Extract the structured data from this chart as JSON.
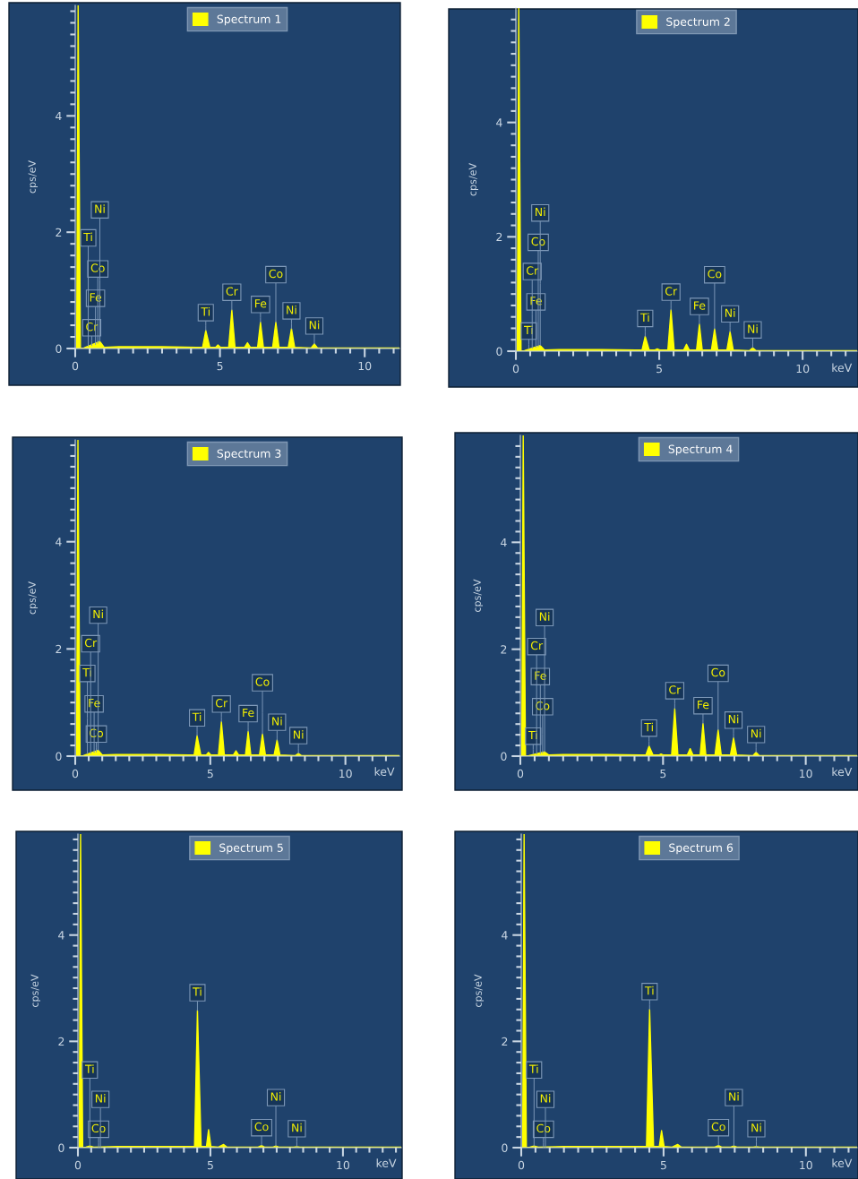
{
  "chart_data": [
    {
      "type": "area",
      "ylabel": "cps/eV",
      "legend": "top",
      "xlim": [
        0,
        11.2
      ],
      "ylim": [
        0,
        5.9
      ],
      "xticks": [
        0,
        {
          "value": 0.5,
          "label": null
        },
        {
          "value": 1,
          "label": null
        },
        {
          "value": 1.5,
          "label": null
        },
        {
          "value": 2,
          "label": null
        },
        {
          "value": 2.5,
          "label": null
        },
        {
          "value": 3,
          "label": null
        },
        {
          "value": 3.5,
          "label": null
        },
        {
          "value": 4,
          "label": null
        },
        {
          "value": 4.5,
          "label": null
        },
        5,
        {
          "value": 5.5,
          "label": null
        },
        {
          "value": 6,
          "label": null
        },
        {
          "value": 6.5,
          "label": null
        },
        {
          "value": 7,
          "label": null
        },
        {
          "value": 7.5,
          "label": null
        },
        {
          "value": 8,
          "label": null
        },
        {
          "value": 8.5,
          "label": null
        },
        {
          "value": 9,
          "label": null
        },
        {
          "value": 9.5,
          "label": null
        },
        10,
        {
          "value": 10.5,
          "label": null
        },
        {
          "value": 11,
          "label": null
        }
      ],
      "yticks": [
        0,
        {
          "value": 0.2,
          "label": null
        },
        {
          "value": 0.4,
          "label": null
        },
        {
          "value": 0.6,
          "label": null
        },
        {
          "value": 0.8,
          "label": null
        },
        {
          "value": 1,
          "label": null
        },
        {
          "value": 1.2,
          "label": null
        },
        {
          "value": 1.4,
          "label": null
        },
        {
          "value": 1.6,
          "label": null
        },
        {
          "value": 1.8,
          "label": null
        },
        2,
        {
          "value": 2.2,
          "label": null
        },
        {
          "value": 2.4,
          "label": null
        },
        {
          "value": 2.6,
          "label": null
        },
        {
          "value": 2.8,
          "label": null
        },
        {
          "value": 3,
          "label": null
        },
        {
          "value": 3.2,
          "label": null
        },
        {
          "value": 3.4,
          "label": null
        },
        {
          "value": 3.6,
          "label": null
        },
        {
          "value": 3.8,
          "label": null
        },
        4,
        {
          "value": 4.2,
          "label": null
        },
        {
          "value": 4.4,
          "label": null
        },
        {
          "value": 4.6,
          "label": null
        },
        {
          "value": 4.8,
          "label": null
        },
        {
          "value": 5,
          "label": null
        },
        {
          "value": 5.2,
          "label": null
        },
        {
          "value": 5.4,
          "label": null
        },
        {
          "value": 5.6,
          "label": null
        },
        {
          "value": 5.8,
          "label": null
        }
      ],
      "series": [
        {
          "name": "Spectrum 1",
          "color": "#ffff00",
          "x": [
            0,
            0.05,
            0.1,
            0.18,
            0.3,
            0.85,
            1.0,
            1.5,
            3.0,
            4.2,
            4.4,
            4.51,
            4.65,
            4.85,
            4.93,
            5.02,
            5.3,
            5.41,
            5.52,
            5.85,
            5.95,
            6.05,
            6.3,
            6.4,
            6.5,
            6.82,
            6.93,
            7.04,
            7.36,
            7.47,
            7.58,
            8.15,
            8.26,
            8.37,
            9,
            11.2
          ],
          "values": [
            0,
            0,
            5.9,
            0,
            0.01,
            0.12,
            0.02,
            0.03,
            0.03,
            0.02,
            0.02,
            0.31,
            0.02,
            0.02,
            0.06,
            0.02,
            0.02,
            0.66,
            0.02,
            0.02,
            0.1,
            0.02,
            0.02,
            0.45,
            0.02,
            0.02,
            0.45,
            0.02,
            0.02,
            0.34,
            0.02,
            0.01,
            0.08,
            0.01,
            0.01,
            0.01
          ]
        }
      ],
      "annotations": [
        {
          "text": "Cr",
          "x": 0.57,
          "y": 0.05
        },
        {
          "text": "Fe",
          "x": 0.7,
          "y": 0.07
        },
        {
          "text": "Co",
          "x": 0.78,
          "y": 0.09
        },
        {
          "text": "Ti",
          "x": 0.45,
          "y": 0.04
        },
        {
          "text": "Ni",
          "x": 0.85,
          "y": 0.12
        },
        {
          "text": "Ti",
          "x": 4.51,
          "y": 0.31
        },
        {
          "text": "Cr",
          "x": 5.41,
          "y": 0.66
        },
        {
          "text": "Fe",
          "x": 6.4,
          "y": 0.45
        },
        {
          "text": "Co",
          "x": 6.93,
          "y": 0.45
        },
        {
          "text": "Ni",
          "x": 7.47,
          "y": 0.34
        },
        {
          "text": "Ni",
          "x": 8.26,
          "y": 0.08
        }
      ]
    },
    {
      "type": "area",
      "ylabel": "cps/eV",
      "xlabel": "keV",
      "legend": "top",
      "xlim": [
        0,
        11.9
      ],
      "ylim": [
        0,
        6.0
      ],
      "xticks": [
        0,
        {
          "value": 0.5,
          "label": null
        },
        {
          "value": 1,
          "label": null
        },
        {
          "value": 1.5,
          "label": null
        },
        {
          "value": 2,
          "label": null
        },
        {
          "value": 2.5,
          "label": null
        },
        {
          "value": 3,
          "label": null
        },
        {
          "value": 3.5,
          "label": null
        },
        {
          "value": 4,
          "label": null
        },
        {
          "value": 4.5,
          "label": null
        },
        5,
        {
          "value": 5.5,
          "label": null
        },
        {
          "value": 6,
          "label": null
        },
        {
          "value": 6.5,
          "label": null
        },
        {
          "value": 7,
          "label": null
        },
        {
          "value": 7.5,
          "label": null
        },
        {
          "value": 8,
          "label": null
        },
        {
          "value": 8.5,
          "label": null
        },
        {
          "value": 9,
          "label": null
        },
        {
          "value": 9.5,
          "label": null
        },
        10,
        {
          "value": 10.5,
          "label": null
        },
        {
          "value": 11,
          "label": null
        },
        {
          "value": 11.5,
          "label": null
        }
      ],
      "yticks": [
        0,
        {
          "value": 0.2,
          "label": null
        },
        {
          "value": 0.4,
          "label": null
        },
        {
          "value": 0.6,
          "label": null
        },
        {
          "value": 0.8,
          "label": null
        },
        {
          "value": 1,
          "label": null
        },
        {
          "value": 1.2,
          "label": null
        },
        {
          "value": 1.4,
          "label": null
        },
        {
          "value": 1.6,
          "label": null
        },
        {
          "value": 1.8,
          "label": null
        },
        2,
        {
          "value": 2.2,
          "label": null
        },
        {
          "value": 2.4,
          "label": null
        },
        {
          "value": 2.6,
          "label": null
        },
        {
          "value": 2.8,
          "label": null
        },
        {
          "value": 3,
          "label": null
        },
        {
          "value": 3.2,
          "label": null
        },
        {
          "value": 3.4,
          "label": null
        },
        {
          "value": 3.6,
          "label": null
        },
        {
          "value": 3.8,
          "label": null
        },
        4,
        {
          "value": 4.2,
          "label": null
        },
        {
          "value": 4.4,
          "label": null
        },
        {
          "value": 4.6,
          "label": null
        },
        {
          "value": 4.8,
          "label": null
        },
        {
          "value": 5,
          "label": null
        },
        {
          "value": 5.2,
          "label": null
        },
        {
          "value": 5.4,
          "label": null
        },
        {
          "value": 5.6,
          "label": null
        },
        {
          "value": 5.8,
          "label": null
        }
      ],
      "series": [
        {
          "name": "Spectrum 2",
          "color": "#ffff00",
          "x": [
            0,
            0.05,
            0.1,
            0.18,
            0.3,
            0.85,
            1.0,
            1.5,
            3.0,
            4.2,
            4.4,
            4.51,
            4.65,
            4.85,
            4.93,
            5.02,
            5.3,
            5.41,
            5.52,
            5.85,
            5.95,
            6.05,
            6.3,
            6.4,
            6.5,
            6.82,
            6.93,
            7.04,
            7.36,
            7.47,
            7.58,
            8.15,
            8.26,
            8.37,
            9,
            11.9
          ],
          "values": [
            0,
            0,
            6.0,
            0,
            0.01,
            0.1,
            0.02,
            0.03,
            0.03,
            0.02,
            0.02,
            0.26,
            0.02,
            0.02,
            0.04,
            0.02,
            0.02,
            0.72,
            0.02,
            0.02,
            0.12,
            0.02,
            0.02,
            0.47,
            0.02,
            0.02,
            0.39,
            0.02,
            0.02,
            0.34,
            0.02,
            0.01,
            0.06,
            0.01,
            0.01,
            0.01
          ]
        }
      ],
      "annotations": [
        {
          "text": "Ti",
          "x": 0.45,
          "y": 0.04
        },
        {
          "text": "Fe",
          "x": 0.7,
          "y": 0.07
        },
        {
          "text": "Cr",
          "x": 0.57,
          "y": 0.05
        },
        {
          "text": "Co",
          "x": 0.78,
          "y": 0.08
        },
        {
          "text": "Ni",
          "x": 0.85,
          "y": 0.1
        },
        {
          "text": "Ti",
          "x": 4.51,
          "y": 0.26
        },
        {
          "text": "Cr",
          "x": 5.41,
          "y": 0.72
        },
        {
          "text": "Fe",
          "x": 6.4,
          "y": 0.47
        },
        {
          "text": "Co",
          "x": 6.93,
          "y": 0.39
        },
        {
          "text": "Ni",
          "x": 7.47,
          "y": 0.34
        },
        {
          "text": "Ni",
          "x": 8.26,
          "y": 0.06
        }
      ]
    },
    {
      "type": "area",
      "ylabel": "cps/eV",
      "xlabel": "keV",
      "legend": "top",
      "xlim": [
        0,
        12
      ],
      "ylim": [
        0,
        5.9
      ],
      "xticks": [
        0,
        {
          "value": 0.5,
          "label": null
        },
        {
          "value": 1,
          "label": null
        },
        {
          "value": 1.5,
          "label": null
        },
        {
          "value": 2,
          "label": null
        },
        {
          "value": 2.5,
          "label": null
        },
        {
          "value": 3,
          "label": null
        },
        {
          "value": 3.5,
          "label": null
        },
        {
          "value": 4,
          "label": null
        },
        {
          "value": 4.5,
          "label": null
        },
        5,
        {
          "value": 5.5,
          "label": null
        },
        {
          "value": 6,
          "label": null
        },
        {
          "value": 6.5,
          "label": null
        },
        {
          "value": 7,
          "label": null
        },
        {
          "value": 7.5,
          "label": null
        },
        {
          "value": 8,
          "label": null
        },
        {
          "value": 8.5,
          "label": null
        },
        {
          "value": 9,
          "label": null
        },
        {
          "value": 9.5,
          "label": null
        },
        10,
        {
          "value": 10.5,
          "label": null
        },
        {
          "value": 11,
          "label": null
        },
        {
          "value": 11.5,
          "label": null
        }
      ],
      "yticks": [
        0,
        {
          "value": 0.2,
          "label": null
        },
        {
          "value": 0.4,
          "label": null
        },
        {
          "value": 0.6,
          "label": null
        },
        {
          "value": 0.8,
          "label": null
        },
        {
          "value": 1,
          "label": null
        },
        {
          "value": 1.2,
          "label": null
        },
        {
          "value": 1.4,
          "label": null
        },
        {
          "value": 1.6,
          "label": null
        },
        {
          "value": 1.8,
          "label": null
        },
        2,
        {
          "value": 2.2,
          "label": null
        },
        {
          "value": 2.4,
          "label": null
        },
        {
          "value": 2.6,
          "label": null
        },
        {
          "value": 2.8,
          "label": null
        },
        {
          "value": 3,
          "label": null
        },
        {
          "value": 3.2,
          "label": null
        },
        {
          "value": 3.4,
          "label": null
        },
        {
          "value": 3.6,
          "label": null
        },
        {
          "value": 3.8,
          "label": null
        },
        4,
        {
          "value": 4.2,
          "label": null
        },
        {
          "value": 4.4,
          "label": null
        },
        {
          "value": 4.6,
          "label": null
        },
        {
          "value": 4.8,
          "label": null
        },
        {
          "value": 5,
          "label": null
        },
        {
          "value": 5.2,
          "label": null
        },
        {
          "value": 5.4,
          "label": null
        },
        {
          "value": 5.6,
          "label": null
        },
        {
          "value": 5.8,
          "label": null
        }
      ],
      "series": [
        {
          "name": "Spectrum 3",
          "color": "#ffff00",
          "x": [
            0,
            0.05,
            0.1,
            0.18,
            0.3,
            0.85,
            1.0,
            1.5,
            3.0,
            4.2,
            4.4,
            4.51,
            4.65,
            4.85,
            4.93,
            5.02,
            5.3,
            5.41,
            5.52,
            5.85,
            5.95,
            6.05,
            6.3,
            6.4,
            6.5,
            6.82,
            6.93,
            7.04,
            7.36,
            7.47,
            7.58,
            8.15,
            8.26,
            8.37,
            9,
            12
          ],
          "values": [
            0,
            0,
            5.9,
            0,
            0.01,
            0.11,
            0.02,
            0.03,
            0.03,
            0.02,
            0.02,
            0.38,
            0.02,
            0.02,
            0.07,
            0.02,
            0.02,
            0.64,
            0.02,
            0.02,
            0.1,
            0.02,
            0.02,
            0.46,
            0.02,
            0.02,
            0.41,
            0.02,
            0.02,
            0.3,
            0.02,
            0.01,
            0.05,
            0.01,
            0.01,
            0.01
          ]
        }
      ],
      "annotations": [
        {
          "text": "Co",
          "x": 0.78,
          "y": 0.08
        },
        {
          "text": "Fe",
          "x": 0.7,
          "y": 0.07
        },
        {
          "text": "Ti",
          "x": 0.45,
          "y": 0.04
        },
        {
          "text": "Cr",
          "x": 0.57,
          "y": 0.05
        },
        {
          "text": "Ni",
          "x": 0.85,
          "y": 0.11
        },
        {
          "text": "Ti",
          "x": 4.51,
          "y": 0.38
        },
        {
          "text": "Cr",
          "x": 5.41,
          "y": 0.64
        },
        {
          "text": "Fe",
          "x": 6.4,
          "y": 0.46
        },
        {
          "text": "Co",
          "x": 6.93,
          "y": 0.41
        },
        {
          "text": "Ni",
          "x": 7.47,
          "y": 0.3
        },
        {
          "text": "Ni",
          "x": 8.26,
          "y": 0.05
        }
      ]
    },
    {
      "type": "area",
      "ylabel": "cps/eV",
      "xlabel": "keV",
      "legend": "top",
      "xlim": [
        0,
        11.8
      ],
      "ylim": [
        0,
        6.0
      ],
      "xticks": [
        0,
        {
          "value": 0.5,
          "label": null
        },
        {
          "value": 1,
          "label": null
        },
        {
          "value": 1.5,
          "label": null
        },
        {
          "value": 2,
          "label": null
        },
        {
          "value": 2.5,
          "label": null
        },
        {
          "value": 3,
          "label": null
        },
        {
          "value": 3.5,
          "label": null
        },
        {
          "value": 4,
          "label": null
        },
        {
          "value": 4.5,
          "label": null
        },
        5,
        {
          "value": 5.5,
          "label": null
        },
        {
          "value": 6,
          "label": null
        },
        {
          "value": 6.5,
          "label": null
        },
        {
          "value": 7,
          "label": null
        },
        {
          "value": 7.5,
          "label": null
        },
        {
          "value": 8,
          "label": null
        },
        {
          "value": 8.5,
          "label": null
        },
        {
          "value": 9,
          "label": null
        },
        {
          "value": 9.5,
          "label": null
        },
        10,
        {
          "value": 10.5,
          "label": null
        },
        {
          "value": 11,
          "label": null
        },
        {
          "value": 11.5,
          "label": null
        }
      ],
      "yticks": [
        0,
        {
          "value": 0.2,
          "label": null
        },
        {
          "value": 0.4,
          "label": null
        },
        {
          "value": 0.6,
          "label": null
        },
        {
          "value": 0.8,
          "label": null
        },
        {
          "value": 1,
          "label": null
        },
        {
          "value": 1.2,
          "label": null
        },
        {
          "value": 1.4,
          "label": null
        },
        {
          "value": 1.6,
          "label": null
        },
        {
          "value": 1.8,
          "label": null
        },
        2,
        {
          "value": 2.2,
          "label": null
        },
        {
          "value": 2.4,
          "label": null
        },
        {
          "value": 2.6,
          "label": null
        },
        {
          "value": 2.8,
          "label": null
        },
        {
          "value": 3,
          "label": null
        },
        {
          "value": 3.2,
          "label": null
        },
        {
          "value": 3.4,
          "label": null
        },
        {
          "value": 3.6,
          "label": null
        },
        {
          "value": 3.8,
          "label": null
        },
        4,
        {
          "value": 4.2,
          "label": null
        },
        {
          "value": 4.4,
          "label": null
        },
        {
          "value": 4.6,
          "label": null
        },
        {
          "value": 4.8,
          "label": null
        },
        {
          "value": 5,
          "label": null
        },
        {
          "value": 5.2,
          "label": null
        },
        {
          "value": 5.4,
          "label": null
        },
        {
          "value": 5.6,
          "label": null
        },
        {
          "value": 5.8,
          "label": null
        }
      ],
      "series": [
        {
          "name": "Spectrum 4",
          "color": "#ffff00",
          "x": [
            0,
            0.05,
            0.1,
            0.18,
            0.3,
            0.85,
            1.0,
            1.5,
            3.0,
            4.2,
            4.4,
            4.51,
            4.65,
            4.85,
            4.93,
            5.02,
            5.3,
            5.41,
            5.52,
            5.85,
            5.95,
            6.05,
            6.3,
            6.4,
            6.5,
            6.82,
            6.93,
            7.04,
            7.36,
            7.47,
            7.58,
            8.15,
            8.26,
            8.37,
            9,
            11.8
          ],
          "values": [
            0,
            0,
            6.0,
            0,
            0.01,
            0.08,
            0.02,
            0.03,
            0.03,
            0.02,
            0.02,
            0.19,
            0.02,
            0.02,
            0.04,
            0.02,
            0.02,
            0.89,
            0.02,
            0.02,
            0.14,
            0.02,
            0.02,
            0.61,
            0.02,
            0.02,
            0.49,
            0.02,
            0.02,
            0.34,
            0.02,
            0.01,
            0.07,
            0.01,
            0.01,
            0.01
          ]
        }
      ],
      "annotations": [
        {
          "text": "Ti",
          "x": 0.45,
          "y": 0.04
        },
        {
          "text": "Co",
          "x": 0.78,
          "y": 0.06
        },
        {
          "text": "Fe",
          "x": 0.7,
          "y": 0.05
        },
        {
          "text": "Cr",
          "x": 0.57,
          "y": 0.04
        },
        {
          "text": "Ni",
          "x": 0.85,
          "y": 0.08
        },
        {
          "text": "Ti",
          "x": 4.51,
          "y": 0.19
        },
        {
          "text": "Cr",
          "x": 5.41,
          "y": 0.89
        },
        {
          "text": "Fe",
          "x": 6.4,
          "y": 0.61
        },
        {
          "text": "Co",
          "x": 6.93,
          "y": 0.49
        },
        {
          "text": "Ni",
          "x": 7.47,
          "y": 0.34
        },
        {
          "text": "Ni",
          "x": 8.26,
          "y": 0.07
        }
      ]
    },
    {
      "type": "area",
      "ylabel": "cps/eV",
      "xlabel": "keV",
      "legend": "top",
      "xlim": [
        0,
        12.2
      ],
      "ylim": [
        0,
        5.9
      ],
      "xticks": [
        0,
        {
          "value": 0.5,
          "label": null
        },
        {
          "value": 1,
          "label": null
        },
        {
          "value": 1.5,
          "label": null
        },
        {
          "value": 2,
          "label": null
        },
        {
          "value": 2.5,
          "label": null
        },
        {
          "value": 3,
          "label": null
        },
        {
          "value": 3.5,
          "label": null
        },
        {
          "value": 4,
          "label": null
        },
        {
          "value": 4.5,
          "label": null
        },
        5,
        {
          "value": 5.5,
          "label": null
        },
        {
          "value": 6,
          "label": null
        },
        {
          "value": 6.5,
          "label": null
        },
        {
          "value": 7,
          "label": null
        },
        {
          "value": 7.5,
          "label": null
        },
        {
          "value": 8,
          "label": null
        },
        {
          "value": 8.5,
          "label": null
        },
        {
          "value": 9,
          "label": null
        },
        {
          "value": 9.5,
          "label": null
        },
        10,
        {
          "value": 10.5,
          "label": null
        },
        {
          "value": 11,
          "label": null
        },
        {
          "value": 11.5,
          "label": null
        },
        {
          "value": 12,
          "label": null
        }
      ],
      "yticks": [
        0,
        {
          "value": 0.2,
          "label": null
        },
        {
          "value": 0.4,
          "label": null
        },
        {
          "value": 0.6,
          "label": null
        },
        {
          "value": 0.8,
          "label": null
        },
        {
          "value": 1,
          "label": null
        },
        {
          "value": 1.2,
          "label": null
        },
        {
          "value": 1.4,
          "label": null
        },
        {
          "value": 1.6,
          "label": null
        },
        {
          "value": 1.8,
          "label": null
        },
        2,
        {
          "value": 2.2,
          "label": null
        },
        {
          "value": 2.4,
          "label": null
        },
        {
          "value": 2.6,
          "label": null
        },
        {
          "value": 2.8,
          "label": null
        },
        {
          "value": 3,
          "label": null
        },
        {
          "value": 3.2,
          "label": null
        },
        {
          "value": 3.4,
          "label": null
        },
        {
          "value": 3.6,
          "label": null
        },
        {
          "value": 3.8,
          "label": null
        },
        4,
        {
          "value": 4.2,
          "label": null
        },
        {
          "value": 4.4,
          "label": null
        },
        {
          "value": 4.6,
          "label": null
        },
        {
          "value": 4.8,
          "label": null
        },
        {
          "value": 5,
          "label": null
        },
        {
          "value": 5.2,
          "label": null
        },
        {
          "value": 5.4,
          "label": null
        },
        {
          "value": 5.6,
          "label": null
        },
        {
          "value": 5.8,
          "label": null
        }
      ],
      "series": [
        {
          "name": "Spectrum 5",
          "color": "#ffff00",
          "x": [
            0,
            0.05,
            0.1,
            0.18,
            0.3,
            0.45,
            0.6,
            1.5,
            3.0,
            4.2,
            4.4,
            4.51,
            4.65,
            4.85,
            4.93,
            5.02,
            5.3,
            5.5,
            5.62,
            6.8,
            6.93,
            7.04,
            7.36,
            7.47,
            7.58,
            8.15,
            8.26,
            8.37,
            9,
            12.2
          ],
          "values": [
            0,
            0,
            5.9,
            0,
            0.01,
            0.03,
            0.01,
            0.02,
            0.02,
            0.02,
            0.02,
            2.58,
            0.02,
            0.02,
            0.34,
            0.02,
            0.01,
            0.06,
            0.01,
            0.01,
            0.04,
            0.01,
            0.01,
            0.03,
            0.01,
            0.01,
            0.02,
            0.01,
            0.01,
            0.01
          ]
        }
      ],
      "annotations": [
        {
          "text": "Co",
          "x": 0.78,
          "y": 0.01
        },
        {
          "text": "Ni",
          "x": 0.85,
          "y": 0.01
        },
        {
          "text": "Ti",
          "x": 0.45,
          "y": 0.03
        },
        {
          "text": "Ti",
          "x": 4.51,
          "y": 2.58
        },
        {
          "text": "Co",
          "x": 6.93,
          "y": 0.04
        },
        {
          "text": "Ni",
          "x": 7.47,
          "y": 0.03
        },
        {
          "text": "Ni",
          "x": 8.26,
          "y": 0.02
        }
      ]
    },
    {
      "type": "area",
      "ylabel": "cps/eV",
      "xlabel": "keV",
      "legend": "top",
      "xlim": [
        0,
        11.8
      ],
      "ylim": [
        0,
        5.9
      ],
      "xticks": [
        0,
        {
          "value": 0.5,
          "label": null
        },
        {
          "value": 1,
          "label": null
        },
        {
          "value": 1.5,
          "label": null
        },
        {
          "value": 2,
          "label": null
        },
        {
          "value": 2.5,
          "label": null
        },
        {
          "value": 3,
          "label": null
        },
        {
          "value": 3.5,
          "label": null
        },
        {
          "value": 4,
          "label": null
        },
        {
          "value": 4.5,
          "label": null
        },
        5,
        {
          "value": 5.5,
          "label": null
        },
        {
          "value": 6,
          "label": null
        },
        {
          "value": 6.5,
          "label": null
        },
        {
          "value": 7,
          "label": null
        },
        {
          "value": 7.5,
          "label": null
        },
        {
          "value": 8,
          "label": null
        },
        {
          "value": 8.5,
          "label": null
        },
        {
          "value": 9,
          "label": null
        },
        {
          "value": 9.5,
          "label": null
        },
        10,
        {
          "value": 10.5,
          "label": null
        },
        {
          "value": 11,
          "label": null
        },
        {
          "value": 11.5,
          "label": null
        }
      ],
      "yticks": [
        0,
        {
          "value": 0.2,
          "label": null
        },
        {
          "value": 0.4,
          "label": null
        },
        {
          "value": 0.6,
          "label": null
        },
        {
          "value": 0.8,
          "label": null
        },
        {
          "value": 1,
          "label": null
        },
        {
          "value": 1.2,
          "label": null
        },
        {
          "value": 1.4,
          "label": null
        },
        {
          "value": 1.6,
          "label": null
        },
        {
          "value": 1.8,
          "label": null
        },
        2,
        {
          "value": 2.2,
          "label": null
        },
        {
          "value": 2.4,
          "label": null
        },
        {
          "value": 2.6,
          "label": null
        },
        {
          "value": 2.8,
          "label": null
        },
        {
          "value": 3,
          "label": null
        },
        {
          "value": 3.2,
          "label": null
        },
        {
          "value": 3.4,
          "label": null
        },
        {
          "value": 3.6,
          "label": null
        },
        {
          "value": 3.8,
          "label": null
        },
        4,
        {
          "value": 4.2,
          "label": null
        },
        {
          "value": 4.4,
          "label": null
        },
        {
          "value": 4.6,
          "label": null
        },
        {
          "value": 4.8,
          "label": null
        },
        {
          "value": 5,
          "label": null
        },
        {
          "value": 5.2,
          "label": null
        },
        {
          "value": 5.4,
          "label": null
        },
        {
          "value": 5.6,
          "label": null
        },
        {
          "value": 5.8,
          "label": null
        }
      ],
      "series": [
        {
          "name": "Spectrum 6",
          "color": "#ffff00",
          "x": [
            0,
            0.05,
            0.1,
            0.18,
            0.3,
            0.45,
            0.6,
            1.5,
            3.0,
            4.2,
            4.4,
            4.51,
            4.65,
            4.85,
            4.93,
            5.02,
            5.3,
            5.5,
            5.62,
            6.8,
            6.93,
            7.04,
            7.36,
            7.47,
            7.58,
            8.15,
            8.26,
            8.37,
            9,
            11.8
          ],
          "values": [
            0,
            0,
            5.9,
            0,
            0.01,
            0.03,
            0.01,
            0.02,
            0.02,
            0.02,
            0.02,
            2.6,
            0.02,
            0.02,
            0.32,
            0.02,
            0.01,
            0.06,
            0.01,
            0.01,
            0.04,
            0.01,
            0.01,
            0.03,
            0.01,
            0.01,
            0.02,
            0.01,
            0.01,
            0.01
          ]
        }
      ],
      "annotations": [
        {
          "text": "Co",
          "x": 0.78,
          "y": 0.01
        },
        {
          "text": "Ni",
          "x": 0.85,
          "y": 0.01
        },
        {
          "text": "Ti",
          "x": 0.45,
          "y": 0.03
        },
        {
          "text": "Ti",
          "x": 4.51,
          "y": 2.6
        },
        {
          "text": "Co",
          "x": 6.93,
          "y": 0.04
        },
        {
          "text": "Ni",
          "x": 7.47,
          "y": 0.03
        },
        {
          "text": "Ni",
          "x": 8.26,
          "y": 0.02
        }
      ]
    }
  ]
}
